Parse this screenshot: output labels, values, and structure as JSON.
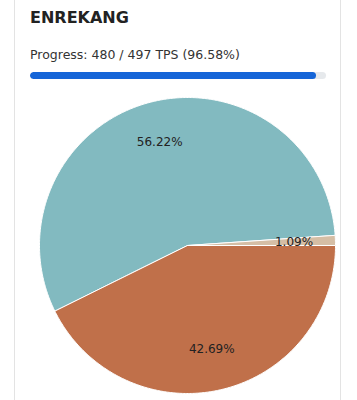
{
  "progress": {
    "label": "Progress: 480 / 497 TPS (96.58%)",
    "value": 480,
    "max": 497
  },
  "chart_data": {
    "type": "pie",
    "title": "ENREKANG",
    "categories": [
      null,
      null,
      null
    ],
    "values": [
      56.22,
      1.09,
      42.69
    ],
    "value_labels": [
      "56.22%",
      "1.09%",
      "42.69%"
    ],
    "colors": [
      "#82bac0",
      "#d5bea5",
      "#c0704a"
    ],
    "data_labels": true
  }
}
